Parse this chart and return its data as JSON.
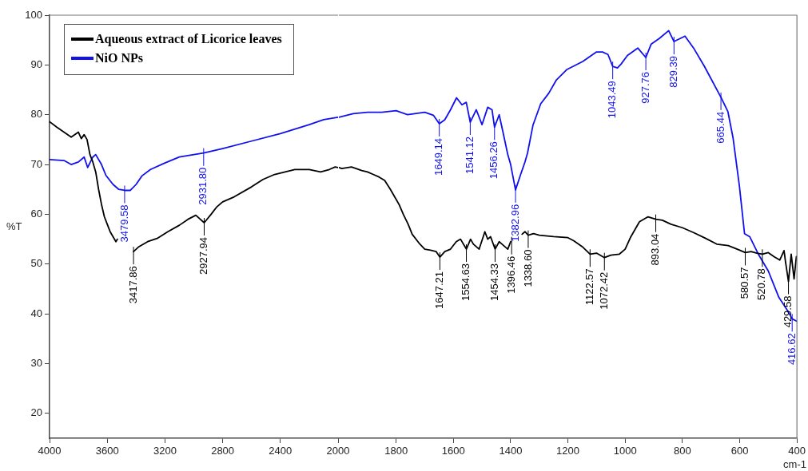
{
  "chart_data": [
    {
      "type": "line",
      "ylabel": "%T",
      "xlim": [
        4000,
        2000
      ],
      "xticks": [
        4000,
        3600,
        3200,
        2800,
        2400,
        2000
      ],
      "ylim": [
        15,
        100
      ],
      "yticks": [
        20,
        30,
        40,
        50,
        60,
        70,
        80,
        90,
        100
      ],
      "grid": false,
      "legend": "top left",
      "marker": "none",
      "line_style": "solid",
      "series": [
        {
          "name": "Aqueous extract of Licorice leaves",
          "color": "#000000",
          "x": [
            4000,
            3950,
            3900,
            3850,
            3800,
            3780,
            3760,
            3740,
            3720,
            3700,
            3680,
            3660,
            3640,
            3620,
            3600,
            3580,
            3560,
            3540,
            3530,
            3510,
            3417.86,
            3380,
            3320,
            3250,
            3180,
            3100,
            3040,
            2986,
            2927.94,
            2880,
            2840,
            2800,
            2720,
            2600,
            2520,
            2440,
            2300,
            2200,
            2121,
            2060,
            2020,
            2000
          ],
          "values": [
            78.6,
            77.5,
            76.5,
            75.5,
            76.5,
            75.2,
            76,
            75,
            72,
            70.5,
            68.5,
            65,
            62,
            59.5,
            58,
            56.5,
            55.5,
            54.5,
            55,
            null,
            52.5,
            53.5,
            54.5,
            55.2,
            56.5,
            57.8,
            59,
            59.8,
            58.3,
            60,
            61.5,
            62.5,
            63.5,
            65.5,
            67,
            68,
            69,
            69,
            68.5,
            69,
            69.5,
            69.4
          ]
        },
        {
          "name": "NiO NPs",
          "color": "#1010f0",
          "x": [
            4000,
            3900,
            3850,
            3800,
            3760,
            3736,
            3700,
            3680,
            3640,
            3609,
            3560,
            3520,
            3479.58,
            3440,
            3400,
            3360,
            3300,
            3200,
            3100,
            2931.8,
            2800,
            2600,
            2400,
            2200,
            2100,
            2000
          ],
          "values": [
            71,
            70.8,
            70,
            70.5,
            71.5,
            69.4,
            71.5,
            72,
            70,
            67.8,
            66,
            65,
            64.8,
            64.8,
            66,
            67.7,
            69,
            70.3,
            71.5,
            72.3,
            73.2,
            74.7,
            76.2,
            78,
            79,
            79.5
          ]
        }
      ],
      "annotations": [
        {
          "text": "3479.58",
          "x": 3479.58,
          "y": 64.8
        },
        {
          "text": "2931.80",
          "x": 2931.8,
          "y": 72.3
        },
        {
          "text": "3417.86",
          "x": 3417.86,
          "y": 52.5
        },
        {
          "text": "2927.94",
          "x": 2927.94,
          "y": 58.3
        }
      ]
    },
    {
      "type": "line",
      "xlabel": "cm-1",
      "xlim": [
        2000,
        400
      ],
      "xticks": [
        1800,
        1600,
        1400,
        1200,
        1000,
        800,
        600,
        400
      ],
      "ylim": [
        15,
        100
      ],
      "tick_labels": "x",
      "grid": false,
      "marker": "none",
      "line_style": "solid",
      "series": [
        {
          "color": "#000000",
          "x": [
            2000,
            1990,
            1956,
            1920,
            1900,
            1880,
            1860,
            1840,
            1820,
            1800,
            1790,
            1775,
            1758,
            1744,
            1720,
            1700,
            1680,
            1660,
            1647.21,
            1630,
            1610,
            1590,
            1575,
            1554.63,
            1540,
            1530,
            1510,
            1490,
            1480,
            1470,
            1454.33,
            1440,
            1430,
            1410,
            1400,
            1390,
            1360,
            1350,
            1338.6,
            1320,
            1300,
            1250,
            1200,
            1180,
            1150,
            1122.57,
            1100,
            1072.42,
            1050,
            1020,
            1000,
            980,
            950,
            920,
            893.04,
            870,
            840,
            800,
            760,
            720,
            680,
            640,
            600,
            580.57,
            560,
            540,
            520.78,
            500,
            480,
            460,
            445,
            440,
            429.58,
            420,
            410,
            402
          ],
          "values": [
            69.4,
            69.2,
            69.5,
            68.8,
            68.5,
            68,
            67.5,
            66.8,
            65,
            63,
            62,
            60,
            58,
            56,
            54.2,
            53,
            52.8,
            52.5,
            51.4,
            52.5,
            53,
            54.5,
            55,
            53,
            55,
            54,
            53,
            56.5,
            55,
            55.5,
            53,
            54.5,
            54,
            53,
            54.5,
            null,
            56,
            56.5,
            55.8,
            56.1,
            55.8,
            55.5,
            55.3,
            54.7,
            53.5,
            52,
            52.2,
            51.3,
            51.8,
            52,
            53,
            55.5,
            58.5,
            59.5,
            59,
            58.8,
            58,
            57.3,
            56.3,
            55.2,
            54,
            53.7,
            52.8,
            52.3,
            52.5,
            52.2,
            52,
            52.3,
            51.5,
            50.8,
            52.7,
            50.5,
            46.5,
            52,
            47,
            51.5
          ]
        },
        {
          "color": "#1010f0",
          "x": [
            2000,
            1950,
            1900,
            1850,
            1800,
            1760,
            1700,
            1670,
            1649.14,
            1630,
            1610,
            1589,
            1570,
            1555,
            1541.12,
            1520,
            1500,
            1480,
            1465,
            1456.26,
            1440,
            1426,
            1410,
            1400,
            1382.96,
            1365,
            1350,
            1341,
            1322,
            1295,
            1267,
            1240,
            1203,
            1148,
            1101,
            1079,
            1060,
            1043.49,
            1027,
            1014,
            992,
            956,
            927.76,
            909,
            881,
            848,
            829.39,
            791,
            761,
            723,
            665.44,
            641,
            623,
            601,
            583,
            565,
            533,
            500,
            463,
            431,
            416.62,
            400
          ],
          "values": [
            79.5,
            80.2,
            80.5,
            80.5,
            80.8,
            80,
            80.5,
            79.9,
            78.2,
            79,
            81,
            83.4,
            82,
            82.5,
            78.5,
            81,
            78,
            81.5,
            81,
            77.5,
            80,
            76.3,
            72,
            70,
            64.9,
            68,
            70.5,
            72.3,
            77.9,
            82.2,
            84.3,
            87,
            89.1,
            90.7,
            92.6,
            92.6,
            92.1,
            89.7,
            89.4,
            90.2,
            91.9,
            93.4,
            91.5,
            94.2,
            95.3,
            96.9,
            94.7,
            95.8,
            93.4,
            89.7,
            83.5,
            80.6,
            75.3,
            65.7,
            56.1,
            55.5,
            51.8,
            48.6,
            43.3,
            40.5,
            39,
            38.5
          ]
        }
      ],
      "annotations": [
        {
          "text": "1649.14",
          "x": 1649.14,
          "y": 78.2
        },
        {
          "text": "1541.12",
          "x": 1541.12,
          "y": 78.5
        },
        {
          "text": "1456.26",
          "x": 1456.26,
          "y": 77.5
        },
        {
          "text": "1382.96",
          "x": 1382.96,
          "y": 64.9
        },
        {
          "text": "1043.49",
          "x": 1043.49,
          "y": 89.7
        },
        {
          "text": "927.76",
          "x": 927.76,
          "y": 91.5
        },
        {
          "text": "829.39",
          "x": 829.39,
          "y": 94.7
        },
        {
          "text": "665.44",
          "x": 665.44,
          "y": 83.5
        },
        {
          "text": "416.62",
          "x": 416.62,
          "y": 39
        },
        {
          "text": "1647.21",
          "x": 1647.21,
          "y": 51.4
        },
        {
          "text": "1554.63",
          "x": 1554.63,
          "y": 53
        },
        {
          "text": "1454.33",
          "x": 1454.33,
          "y": 53
        },
        {
          "text": "1396.46",
          "x": 1396.46,
          "y": 54.5
        },
        {
          "text": "1338.60",
          "x": 1338.6,
          "y": 55.8
        },
        {
          "text": "1122.57",
          "x": 1122.57,
          "y": 52
        },
        {
          "text": "1072.42",
          "x": 1072.42,
          "y": 51.3
        },
        {
          "text": "893.04",
          "x": 893.04,
          "y": 59
        },
        {
          "text": "580.57",
          "x": 580.57,
          "y": 52.3
        },
        {
          "text": "520.78",
          "x": 520.78,
          "y": 52
        },
        {
          "text": "429.58",
          "x": 429.58,
          "y": 46.5
        }
      ]
    }
  ]
}
